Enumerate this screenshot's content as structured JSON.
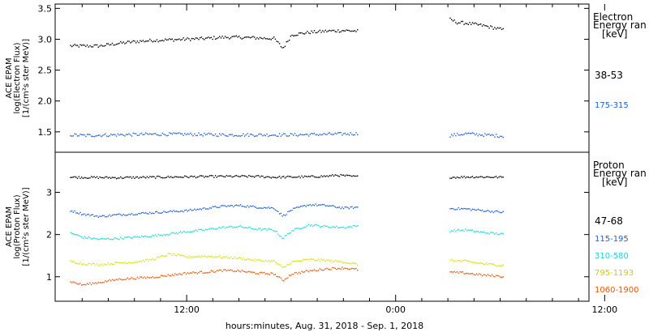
{
  "chart_data": [
    {
      "type": "scatter",
      "panel": "electron",
      "ylabel_lines": [
        "ACE EPAM",
        "log(Electron Flux)",
        "[1/(cm²s ster MeV)]"
      ],
      "yticks": [
        1.5,
        2.0,
        2.5,
        3.0,
        3.5
      ],
      "ytick_labels": [
        "1.5",
        "2.0",
        "2.5",
        "3.0",
        "3.5"
      ],
      "ylim": [
        1.17,
        3.57
      ],
      "legend_title_lines": [
        "Electron",
        "Energy ran",
        "[keV]"
      ],
      "series": [
        {
          "name": "38-53",
          "color": "#000000",
          "segments": [
            {
              "x": [
                -1.4,
                0.0,
                2.0,
                4.0,
                6.0,
                8.0,
                10.0,
                12.0,
                14.0,
                16.0,
                18.0,
                20.0,
                22.0,
                23.0,
                24.0,
                26.0,
                28.0,
                30.0,
                31.7
              ],
              "y": [
                2.9,
                2.9,
                2.9,
                2.94,
                2.97,
                2.99,
                3.0,
                3.01,
                3.02,
                3.04,
                3.04,
                3.03,
                3.02,
                2.86,
                3.08,
                3.12,
                3.14,
                3.15,
                3.14
              ]
            },
            {
              "x": [
                42.2,
                43.0,
                44.0,
                45.0,
                46.0,
                47.0,
                48.0,
                48.3
              ],
              "y": [
                3.33,
                3.28,
                3.27,
                3.25,
                3.23,
                3.2,
                3.17,
                3.16
              ]
            }
          ]
        },
        {
          "name": "175-315",
          "color": "#1f5fd0",
          "segments": [
            {
              "x": [
                -1.4,
                0.0,
                4.0,
                8.0,
                12.0,
                16.0,
                20.0,
                24.0,
                28.0,
                31.7
              ],
              "y": [
                1.46,
                1.45,
                1.46,
                1.47,
                1.47,
                1.46,
                1.46,
                1.46,
                1.47,
                1.48
              ]
            },
            {
              "x": [
                42.2,
                44.0,
                46.0,
                48.3
              ],
              "y": [
                1.45,
                1.48,
                1.46,
                1.44
              ]
            }
          ]
        }
      ]
    },
    {
      "type": "scatter",
      "panel": "proton",
      "ylabel_lines": [
        "ACE EPAM",
        "log(Proton Flux)",
        "[1/(cm²s ster MeV)]"
      ],
      "yticks": [
        1,
        2,
        3
      ],
      "ytick_labels": [
        "1",
        "2",
        "3"
      ],
      "ylim": [
        0.42,
        3.95
      ],
      "legend_title_lines": [
        "Proton",
        "Energy ran",
        "[keV]"
      ],
      "series": [
        {
          "name": "47-68",
          "color": "#000000",
          "segments": [
            {
              "x": [
                -1.4,
                4.0,
                8.0,
                12.0,
                16.0,
                20.0,
                22.0,
                26.0,
                28.5,
                29.0,
                31.7
              ],
              "y": [
                3.37,
                3.36,
                3.37,
                3.38,
                3.39,
                3.39,
                3.37,
                3.38,
                3.4,
                3.42,
                3.38
              ]
            },
            {
              "x": [
                42.2,
                45.0,
                48.3
              ],
              "y": [
                3.37,
                3.38,
                3.37
              ]
            }
          ]
        },
        {
          "name": "115-195",
          "color": "#1f5fd0",
          "segments": [
            {
              "x": [
                -1.4,
                0.0,
                2.0,
                4.0,
                8.0,
                12.0,
                14.0,
                16.0,
                18.0,
                20.0,
                22.0,
                23.0,
                24.0,
                26.0,
                28.0,
                30.0,
                31.7
              ],
              "y": [
                2.58,
                2.5,
                2.44,
                2.48,
                2.53,
                2.58,
                2.63,
                2.68,
                2.7,
                2.66,
                2.64,
                2.45,
                2.6,
                2.72,
                2.7,
                2.64,
                2.66
              ]
            },
            {
              "x": [
                42.2,
                44.0,
                46.0,
                48.3
              ],
              "y": [
                2.63,
                2.62,
                2.58,
                2.54
              ]
            }
          ]
        },
        {
          "name": "310-580",
          "color": "#19d7d7",
          "segments": [
            {
              "x": [
                -1.4,
                0.0,
                2.0,
                4.0,
                8.0,
                12.0,
                14.0,
                16.0,
                18.0,
                20.0,
                22.0,
                23.0,
                24.0,
                26.0,
                28.0,
                30.0,
                31.7
              ],
              "y": [
                2.05,
                1.95,
                1.9,
                1.92,
                1.98,
                2.08,
                2.12,
                2.18,
                2.2,
                2.14,
                2.12,
                1.92,
                2.1,
                2.24,
                2.2,
                2.18,
                2.22
              ]
            },
            {
              "x": [
                42.2,
                44.0,
                46.0,
                48.3
              ],
              "y": [
                2.1,
                2.12,
                2.06,
                2.02
              ]
            }
          ]
        },
        {
          "name": "795-1193",
          "color": "#d8e000",
          "segments": [
            {
              "x": [
                -1.4,
                0.0,
                2.0,
                4.0,
                6.0,
                8.0,
                10.0,
                12.0,
                14.0,
                16.0,
                18.0,
                20.0,
                22.0,
                23.0,
                24.0,
                26.0,
                28.0,
                30.0,
                31.7
              ],
              "y": [
                1.38,
                1.32,
                1.3,
                1.34,
                1.36,
                1.42,
                1.55,
                1.48,
                1.5,
                1.48,
                1.45,
                1.4,
                1.38,
                1.22,
                1.36,
                1.42,
                1.4,
                1.36,
                1.3
              ]
            },
            {
              "x": [
                42.2,
                44.0,
                46.0,
                48.3
              ],
              "y": [
                1.4,
                1.38,
                1.32,
                1.28
              ]
            }
          ]
        },
        {
          "name": "1060-1900",
          "color": "#e8560a",
          "segments": [
            {
              "x": [
                -1.4,
                0.0,
                2.0,
                4.0,
                6.0,
                8.0,
                10.0,
                12.0,
                14.0,
                16.0,
                18.0,
                20.0,
                22.0,
                23.0,
                24.0,
                26.0,
                28.0,
                30.0,
                31.7
              ],
              "y": [
                0.9,
                0.82,
                0.88,
                0.95,
                0.98,
                1.0,
                1.05,
                1.1,
                1.12,
                1.16,
                1.15,
                1.1,
                1.08,
                0.92,
                1.08,
                1.15,
                1.2,
                1.22,
                1.18
              ]
            },
            {
              "x": [
                42.2,
                44.0,
                46.0,
                48.3
              ],
              "y": [
                1.12,
                1.1,
                1.05,
                1.02
              ]
            }
          ]
        }
      ]
    }
  ],
  "x_axis": {
    "label": "hours:minutes, Aug. 31, 2018 - Sep.  1, 2018",
    "xlim": [
      -3.1,
      58.2
    ],
    "ticks": [
      12,
      36,
      60
    ],
    "tick_labels": [
      "12:00",
      "0:00",
      "12:00"
    ],
    "unit": "hours since 2018-08-31 00:00"
  }
}
